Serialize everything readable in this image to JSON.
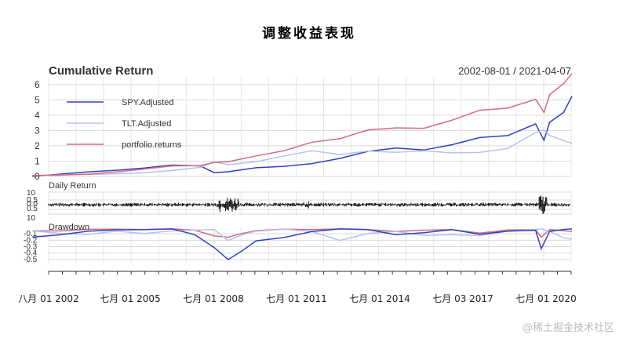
{
  "title": "调整收益表现",
  "watermark": "@稀土掘金技术社区",
  "chart_data": [
    {
      "type": "line",
      "title": "Cumulative Return",
      "date_range": "2002-08-01 / 2021-04-07",
      "ylim": [
        0,
        6.5
      ],
      "y_ticks": [
        "0",
        "1",
        "2",
        "3",
        "4",
        "5",
        "6"
      ],
      "grid": true,
      "legend_position": "top-left",
      "x": [
        "2002",
        "2003",
        "2004",
        "2005",
        "2006",
        "2007",
        "2008",
        "2008.5",
        "2009",
        "2010",
        "2011",
        "2012",
        "2013",
        "2014",
        "2015",
        "2016",
        "2017",
        "2018",
        "2019",
        "2020",
        "2020.3",
        "2020.5",
        "2021",
        "2021.3"
      ],
      "series": [
        {
          "name": "SPY.Adjusted",
          "color": "#2f41c4",
          "values": [
            0,
            0.1,
            0.25,
            0.4,
            0.6,
            0.8,
            0.7,
            0.2,
            0.25,
            0.55,
            0.7,
            0.9,
            1.2,
            1.6,
            1.8,
            1.7,
            2.1,
            2.6,
            2.7,
            3.4,
            2.3,
            3.5,
            4.2,
            5.3
          ]
        },
        {
          "name": "TLT.Adjusted",
          "color": "#b6c2ee",
          "values": [
            0,
            0.05,
            0.12,
            0.22,
            0.3,
            0.4,
            0.55,
            0.9,
            0.75,
            1.0,
            1.4,
            1.7,
            1.4,
            1.6,
            1.55,
            1.7,
            1.6,
            1.6,
            1.8,
            2.8,
            3.0,
            2.7,
            2.4,
            2.2
          ]
        },
        {
          "name": "portfolio.returns",
          "color": "#d36a82",
          "values": [
            0,
            0.08,
            0.2,
            0.35,
            0.5,
            0.65,
            0.65,
            0.9,
            1.0,
            1.4,
            1.7,
            2.2,
            2.4,
            3.0,
            3.2,
            3.2,
            3.7,
            4.3,
            4.4,
            5.0,
            4.2,
            5.4,
            6.1,
            6.7
          ]
        }
      ]
    },
    {
      "type": "bar",
      "title": "Daily Return",
      "y_ticks": [
        "10",
        "0.5",
        "0.0",
        "0.5",
        "10"
      ],
      "color": "#000000"
    },
    {
      "type": "line",
      "title": "Drawdown",
      "ylim": [
        -0.55,
        0
      ],
      "y_ticks": [
        "-0.1",
        "-0.2",
        "-0.3",
        "-0.4",
        "-0.5"
      ],
      "x_tick_labels": [
        "八月 01 2002",
        "七月 01 2005",
        "七月 01 2008",
        "七月 01 2011",
        "七月 01 2014",
        "七月 03 2017",
        "七月 01 2020"
      ],
      "x": [
        "2002",
        "2003",
        "2004",
        "2005",
        "2006",
        "2007",
        "2007.8",
        "2008.5",
        "2009",
        "2009.5",
        "2010",
        "2011",
        "2012",
        "2013",
        "2014",
        "2015",
        "2016",
        "2017",
        "2018",
        "2019",
        "2020",
        "2020.2",
        "2020.5",
        "2021",
        "2021.3"
      ],
      "series": [
        {
          "name": "SPY.Adjusted",
          "color": "#2f41c4",
          "values": [
            -0.15,
            -0.1,
            -0.05,
            -0.03,
            -0.02,
            -0.02,
            -0.1,
            -0.3,
            -0.5,
            -0.35,
            -0.2,
            -0.15,
            -0.05,
            -0.02,
            -0.02,
            -0.1,
            -0.08,
            -0.02,
            -0.1,
            -0.05,
            -0.03,
            -0.33,
            -0.05,
            -0.02,
            -0.02
          ]
        },
        {
          "name": "TLT.Adjusted",
          "color": "#b6c2ee",
          "values": [
            -0.05,
            -0.08,
            -0.1,
            -0.05,
            -0.08,
            -0.05,
            -0.03,
            -0.02,
            -0.2,
            -0.1,
            -0.05,
            -0.02,
            -0.05,
            -0.2,
            -0.08,
            -0.05,
            -0.12,
            -0.1,
            -0.12,
            -0.05,
            -0.02,
            -0.02,
            -0.05,
            -0.15,
            -0.18
          ]
        },
        {
          "name": "portfolio.returns",
          "color": "#d36a82",
          "values": [
            -0.05,
            -0.04,
            -0.02,
            -0.02,
            -0.02,
            -0.02,
            -0.03,
            -0.12,
            -0.15,
            -0.08,
            -0.04,
            -0.02,
            -0.02,
            -0.02,
            -0.02,
            -0.05,
            -0.04,
            -0.02,
            -0.08,
            -0.03,
            -0.02,
            -0.15,
            -0.02,
            -0.04,
            -0.06
          ]
        }
      ]
    }
  ]
}
